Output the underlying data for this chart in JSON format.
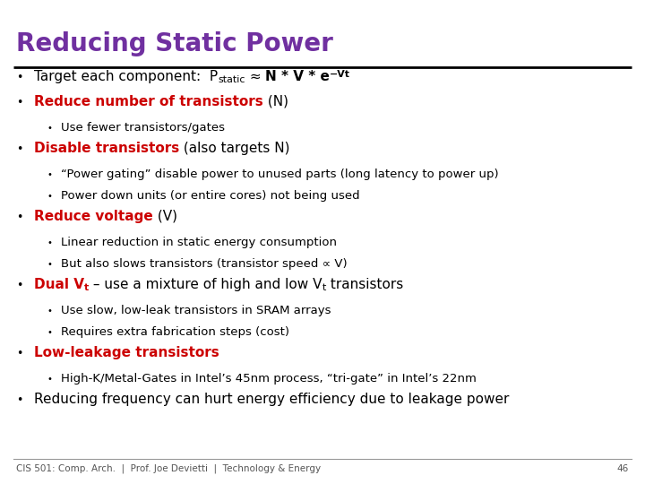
{
  "title": "Reducing Static Power",
  "title_color": "#7030A0",
  "background_color": "#FFFFFF",
  "footer": "CIS 501: Comp. Arch.  |  Prof. Joe Devietti  |  Technology & Energy",
  "page_number": "46",
  "title_fontsize": 20,
  "font_l1": 11,
  "font_l2": 9.5,
  "font_footer": 7.5,
  "content": [
    {
      "level": 1,
      "parts": [
        {
          "text": "Target each component:  P",
          "style": "normal",
          "color": "#000000"
        },
        {
          "text": "static",
          "style": "sub",
          "color": "#000000"
        },
        {
          "text": " ≈ ",
          "style": "normal",
          "color": "#000000"
        },
        {
          "text": "N * V * e",
          "style": "bold",
          "color": "#000000"
        },
        {
          "text": "−Vt",
          "style": "sup_bold",
          "color": "#000000"
        }
      ]
    },
    {
      "level": 1,
      "parts": [
        {
          "text": "Reduce number of transistors",
          "style": "bold",
          "color": "#CC0000"
        },
        {
          "text": " (N)",
          "style": "normal",
          "color": "#000000"
        }
      ]
    },
    {
      "level": 2,
      "parts": [
        {
          "text": "Use fewer transistors/gates",
          "style": "normal",
          "color": "#000000"
        }
      ]
    },
    {
      "level": 1,
      "parts": [
        {
          "text": "Disable transistors",
          "style": "bold",
          "color": "#CC0000"
        },
        {
          "text": " (also targets N)",
          "style": "normal",
          "color": "#000000"
        }
      ]
    },
    {
      "level": 2,
      "parts": [
        {
          "text": "“Power gating” disable power to unused parts (long latency to power up)",
          "style": "normal",
          "color": "#000000"
        }
      ]
    },
    {
      "level": 2,
      "parts": [
        {
          "text": "Power down units (or entire cores) not being used",
          "style": "normal",
          "color": "#000000"
        }
      ]
    },
    {
      "level": 1,
      "parts": [
        {
          "text": "Reduce voltage",
          "style": "bold",
          "color": "#CC0000"
        },
        {
          "text": " (V)",
          "style": "normal",
          "color": "#000000"
        }
      ]
    },
    {
      "level": 2,
      "parts": [
        {
          "text": "Linear reduction in static energy consumption",
          "style": "normal",
          "color": "#000000"
        }
      ]
    },
    {
      "level": 2,
      "parts": [
        {
          "text": "But also slows transistors (transistor speed ∝ V)",
          "style": "normal",
          "color": "#000000"
        }
      ]
    },
    {
      "level": 1,
      "parts": [
        {
          "text": "Dual V",
          "style": "bold",
          "color": "#CC0000"
        },
        {
          "text": "t",
          "style": "sub_bold",
          "color": "#CC0000"
        },
        {
          "text": " – use a mixture of high and low V",
          "style": "normal",
          "color": "#000000"
        },
        {
          "text": "t",
          "style": "sub",
          "color": "#000000"
        },
        {
          "text": " transistors",
          "style": "normal",
          "color": "#000000"
        }
      ]
    },
    {
      "level": 2,
      "parts": [
        {
          "text": "Use slow, low-leak transistors in SRAM arrays",
          "style": "normal",
          "color": "#000000"
        }
      ]
    },
    {
      "level": 2,
      "parts": [
        {
          "text": "Requires extra fabrication steps (cost)",
          "style": "normal",
          "color": "#000000"
        }
      ]
    },
    {
      "level": 1,
      "parts": [
        {
          "text": "Low-leakage transistors",
          "style": "bold",
          "color": "#CC0000"
        }
      ]
    },
    {
      "level": 2,
      "parts": [
        {
          "text": "High-K/Metal-Gates in Intel’s 45nm process, “tri-gate” in Intel’s 22nm",
          "style": "normal",
          "color": "#000000"
        }
      ]
    },
    {
      "level": 1,
      "parts": [
        {
          "text": "Reducing frequency can hurt energy efficiency due to leakage power",
          "style": "normal",
          "color": "#000000"
        }
      ]
    }
  ]
}
